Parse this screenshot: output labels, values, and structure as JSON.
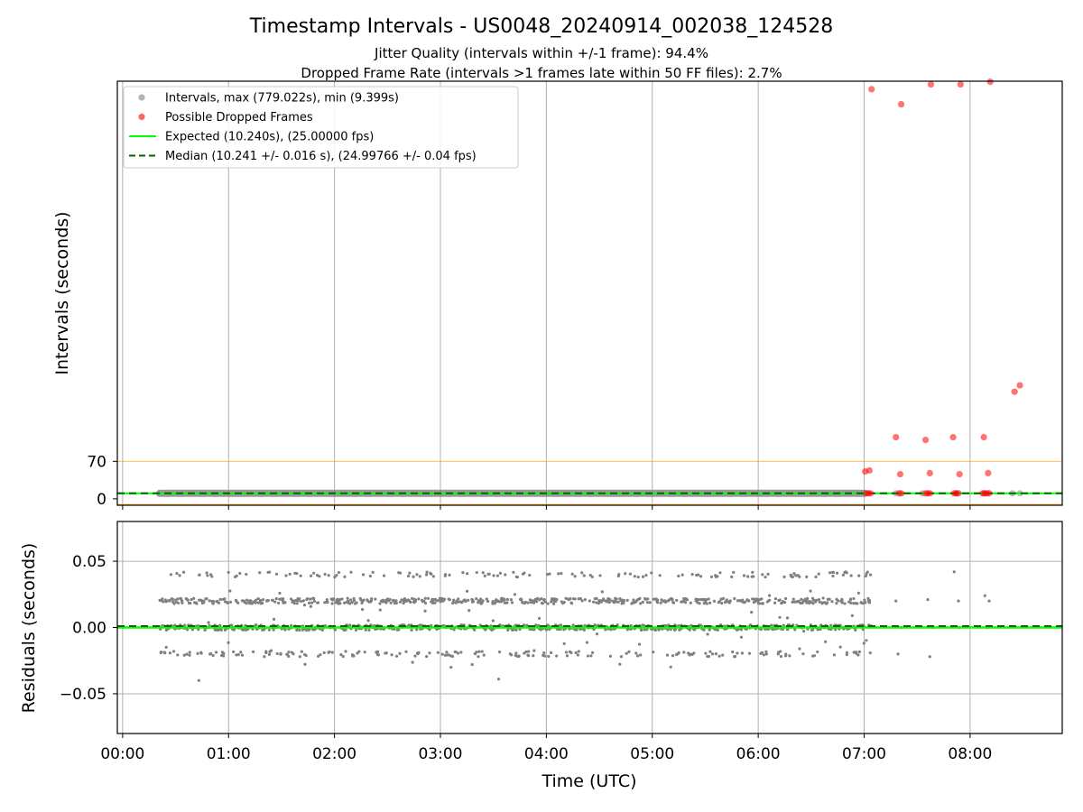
{
  "title": "Timestamp Intervals - US0048_20240914_002038_124528",
  "subtitle_lines": [
    "Jitter Quality (intervals within +/-1 frame): 94.4%",
    "Dropped Frame Rate (intervals >1 frames late within 50 FF files): 2.7%"
  ],
  "colors": {
    "intervals": "#808080",
    "dropped": "#ff0000",
    "expected": "#00ff00",
    "median": "#006400",
    "threshold": "#ffa500",
    "grid": "#b0b0b0"
  },
  "chart_data": [
    {
      "type": "scatter",
      "panel": "intervals",
      "ylabel": "Intervals (seconds)",
      "xlim_hours": [
        -0.05,
        8.87
      ],
      "ylim": [
        -12,
        780
      ],
      "yticks": [
        0,
        70
      ],
      "ytick_labels": [
        "0",
        "70"
      ],
      "grid": "vertical",
      "legend_position": "top-left",
      "legend": [
        {
          "label": "Intervals, max (779.022s), min (9.399s)",
          "kind": "marker",
          "color": "#808080"
        },
        {
          "label": "Possible Dropped Frames",
          "kind": "marker",
          "color": "#ff0000"
        },
        {
          "label": "Expected (10.240s), (25.00000 fps)",
          "kind": "line",
          "color": "#00ff00"
        },
        {
          "label": "Median (10.241 +/- 0.016 s), (24.99766 +/- 0.04 fps)",
          "kind": "dash",
          "color": "#006400"
        }
      ],
      "threshold_lines": [
        70,
        -10.24
      ],
      "expected_value": 10.24,
      "median_value": 10.241,
      "interval_band": {
        "x_start": 0.35,
        "x_end": 7.0,
        "value": 10.24
      },
      "interval_tail_points": [
        [
          7.3,
          10.24
        ],
        [
          7.55,
          10.24
        ],
        [
          7.87,
          10.24
        ],
        [
          8.13,
          10.24
        ],
        [
          8.4,
          10.24
        ],
        [
          8.47,
          10.24
        ]
      ],
      "dropped_frames": [
        [
          7.02,
          10.3
        ],
        [
          7.04,
          10.3
        ],
        [
          7.06,
          10.2
        ],
        [
          7.33,
          10.3
        ],
        [
          7.35,
          10.2
        ],
        [
          7.58,
          10.2
        ],
        [
          7.6,
          10.3
        ],
        [
          7.62,
          10.2
        ],
        [
          7.85,
          10.3
        ],
        [
          7.87,
          10.2
        ],
        [
          7.89,
          10.3
        ],
        [
          8.12,
          10.2
        ],
        [
          8.14,
          10.3
        ],
        [
          8.16,
          10.2
        ],
        [
          8.18,
          10.3
        ],
        [
          7.01,
          51
        ],
        [
          7.05,
          53
        ],
        [
          7.34,
          46
        ],
        [
          7.62,
          48
        ],
        [
          7.9,
          46
        ],
        [
          8.17,
          48
        ],
        [
          7.3,
          115
        ],
        [
          7.58,
          110
        ],
        [
          7.84,
          115
        ],
        [
          8.13,
          115
        ],
        [
          8.42,
          200
        ],
        [
          8.47,
          212
        ],
        [
          7.07,
          765
        ],
        [
          7.35,
          737
        ],
        [
          7.63,
          774
        ],
        [
          7.91,
          774
        ],
        [
          8.19,
          779
        ]
      ]
    },
    {
      "type": "scatter",
      "panel": "residuals",
      "ylabel": "Residuals (seconds)",
      "xlabel": "Time (UTC)",
      "xlim_hours": [
        -0.05,
        8.87
      ],
      "ylim": [
        -0.08,
        0.08
      ],
      "yticks": [
        -0.05,
        0.0,
        0.05
      ],
      "ytick_labels": [
        "−0.05",
        "0.00",
        "0.05"
      ],
      "xticks_hours": [
        0,
        1,
        2,
        3,
        4,
        5,
        6,
        7,
        8
      ],
      "xtick_labels": [
        "00:00",
        "01:00",
        "02:00",
        "03:00",
        "04:00",
        "05:00",
        "06:00",
        "07:00",
        "08:00"
      ],
      "grid": "both",
      "residual_levels": [
        -0.02,
        0.0,
        0.02,
        0.04
      ],
      "dense_range_hours": [
        0.35,
        7.07
      ],
      "expected_residual": 0.0,
      "median_residual": 0.001,
      "sparse_points": [
        [
          0.72,
          -0.04
        ],
        [
          3.55,
          -0.039
        ],
        [
          3.1,
          -0.03
        ],
        [
          3.3,
          -0.028
        ],
        [
          7.3,
          0.02
        ],
        [
          7.32,
          -0.02
        ],
        [
          7.35,
          0.0
        ],
        [
          7.6,
          0.021
        ],
        [
          7.62,
          -0.022
        ],
        [
          7.65,
          0.0
        ],
        [
          7.85,
          0.042
        ],
        [
          7.89,
          0.02
        ],
        [
          7.9,
          0.0
        ],
        [
          8.14,
          0.024
        ],
        [
          8.16,
          0.0
        ],
        [
          8.18,
          0.02
        ]
      ]
    }
  ]
}
